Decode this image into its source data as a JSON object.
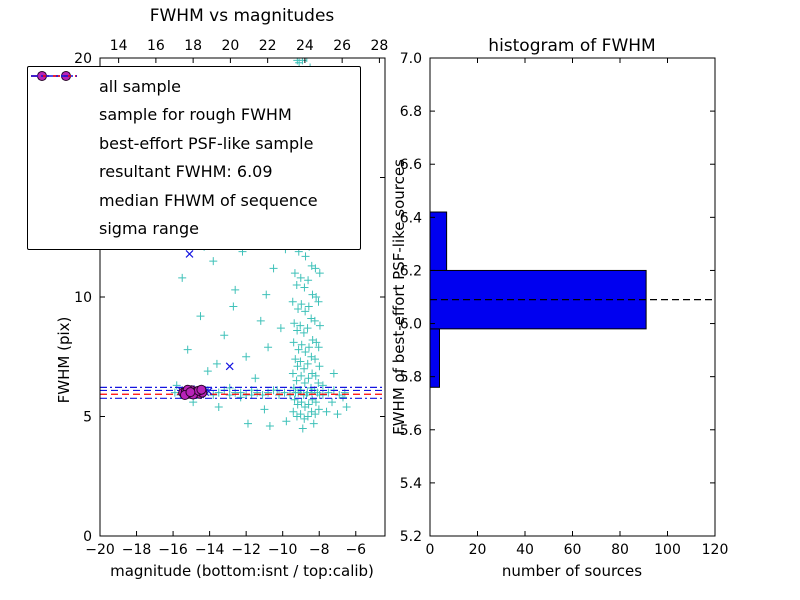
{
  "colors": {
    "all_sample": "#3fc1b9",
    "rough": "#1515e0",
    "psf": "#b823b8",
    "psf_edge": "#2a062a",
    "resultant": "#1515e0",
    "median": "#ff0000",
    "sigma": "#1515e0",
    "bar_fill": "#0000f0",
    "bar_edge": "#000000",
    "hist_line": "#000000",
    "frame": "#000000"
  },
  "chart_data": [
    {
      "id": "fwhm-vs-magnitudes",
      "type": "scatter",
      "title": "FWHM vs magnitudes",
      "xlabel": "magnitude (bottom:isnt / top:calib)",
      "ylabel": "FWHM (pix)",
      "xlim": [
        -20,
        -4.4
      ],
      "top_xlim": [
        13.0,
        28.3
      ],
      "ylim": [
        0,
        20
      ],
      "grid": false,
      "legend_position": "upper-left",
      "xticks": [
        {
          "v": -20,
          "label": "−20"
        },
        {
          "v": -18,
          "label": "−18"
        },
        {
          "v": -16,
          "label": "−16"
        },
        {
          "v": -14,
          "label": "−14"
        },
        {
          "v": -12,
          "label": "−12"
        },
        {
          "v": -10,
          "label": "−10"
        },
        {
          "v": -8,
          "label": "−8"
        },
        {
          "v": -6,
          "label": "−6"
        }
      ],
      "top_xticks": [
        {
          "v": 14,
          "label": "14"
        },
        {
          "v": 16,
          "label": "16"
        },
        {
          "v": 18,
          "label": "18"
        },
        {
          "v": 20,
          "label": "20"
        },
        {
          "v": 22,
          "label": "22"
        },
        {
          "v": 24,
          "label": "24"
        },
        {
          "v": 26,
          "label": "26"
        },
        {
          "v": 28,
          "label": "28"
        }
      ],
      "yticks": [
        {
          "v": 0,
          "label": "0"
        },
        {
          "v": 5,
          "label": "5"
        },
        {
          "v": 10,
          "label": "10"
        },
        {
          "v": 15,
          "label": "15"
        },
        {
          "v": 20,
          "label": "20"
        }
      ],
      "series": [
        {
          "name": "all sample",
          "marker": "plus",
          "color_key": "all_sample",
          "points": [
            [
              -9.42,
              5.2
            ],
            [
              -9.35,
              5.7
            ],
            [
              -9.39,
              6.2
            ],
            [
              -9.44,
              6.8
            ],
            [
              -9.31,
              7.4
            ],
            [
              -9.4,
              8.1
            ],
            [
              -9.37,
              8.9
            ],
            [
              -9.45,
              9.8
            ],
            [
              -9.33,
              11.0
            ],
            [
              -9.41,
              12.6
            ],
            [
              -9.22,
              5.0
            ],
            [
              -9.18,
              5.5
            ],
            [
              -9.15,
              6.0
            ],
            [
              -9.24,
              6.5
            ],
            [
              -9.19,
              7.1
            ],
            [
              -9.13,
              7.8
            ],
            [
              -9.21,
              8.6
            ],
            [
              -9.16,
              9.5
            ],
            [
              -9.23,
              10.5
            ],
            [
              -9.12,
              11.9
            ],
            [
              -9.2,
              13.6
            ],
            [
              -9.02,
              5.1
            ],
            [
              -8.97,
              5.6
            ],
            [
              -9.05,
              6.1
            ],
            [
              -8.99,
              6.7
            ],
            [
              -9.03,
              7.3
            ],
            [
              -8.96,
              8.0
            ],
            [
              -9.04,
              8.8
            ],
            [
              -8.98,
              9.7
            ],
            [
              -9.01,
              10.8
            ],
            [
              -8.95,
              12.2
            ],
            [
              -9.06,
              14.3
            ],
            [
              -9.0,
              16.6
            ],
            [
              -8.82,
              4.9
            ],
            [
              -8.78,
              5.4
            ],
            [
              -8.85,
              5.9
            ],
            [
              -8.79,
              6.4
            ],
            [
              -8.83,
              7.0
            ],
            [
              -8.76,
              7.7
            ],
            [
              -8.84,
              8.5
            ],
            [
              -8.77,
              9.4
            ],
            [
              -8.81,
              10.4
            ],
            [
              -8.75,
              11.7
            ],
            [
              -8.86,
              13.3
            ],
            [
              -8.8,
              15.5
            ],
            [
              -8.74,
              18.1
            ],
            [
              -8.62,
              5.0
            ],
            [
              -8.58,
              5.5
            ],
            [
              -8.65,
              6.0
            ],
            [
              -8.59,
              6.6
            ],
            [
              -8.63,
              7.2
            ],
            [
              -8.56,
              7.9
            ],
            [
              -8.64,
              8.7
            ],
            [
              -8.57,
              9.6
            ],
            [
              -8.61,
              10.7
            ],
            [
              -8.55,
              12.1
            ],
            [
              -8.66,
              13.9
            ],
            [
              -8.6,
              16.3
            ],
            [
              -8.54,
              19.2
            ],
            [
              -8.42,
              5.2
            ],
            [
              -8.38,
              5.7
            ],
            [
              -8.45,
              6.2
            ],
            [
              -8.39,
              6.8
            ],
            [
              -8.43,
              7.5
            ],
            [
              -8.36,
              8.2
            ],
            [
              -8.44,
              9.1
            ],
            [
              -8.37,
              10.1
            ],
            [
              -8.41,
              11.3
            ],
            [
              -8.35,
              12.9
            ],
            [
              -8.46,
              15.1
            ],
            [
              -8.4,
              17.7
            ],
            [
              -8.22,
              5.1
            ],
            [
              -8.18,
              5.6
            ],
            [
              -8.25,
              6.1
            ],
            [
              -8.19,
              6.7
            ],
            [
              -8.23,
              7.4
            ],
            [
              -8.16,
              8.1
            ],
            [
              -8.24,
              9.0
            ],
            [
              -8.17,
              10.0
            ],
            [
              -8.21,
              11.2
            ],
            [
              -8.15,
              12.7
            ],
            [
              -8.26,
              14.6
            ],
            [
              -8.02,
              5.3
            ],
            [
              -7.98,
              5.9
            ],
            [
              -8.05,
              6.4
            ],
            [
              -7.99,
              7.1
            ],
            [
              -8.03,
              7.9
            ],
            [
              -7.96,
              8.8
            ],
            [
              -8.04,
              9.8
            ],
            [
              -7.97,
              11.0
            ],
            [
              -9.1,
              19.8
            ],
            [
              -8.92,
              19.9
            ],
            [
              -8.68,
              20.0
            ],
            [
              -9.3,
              18.5
            ],
            [
              -8.5,
              19.6
            ],
            [
              -9.2,
              19.9
            ],
            [
              -8.85,
              18.6
            ],
            [
              -15.8,
              6.3
            ],
            [
              -15.2,
              7.8
            ],
            [
              -14.9,
              5.6
            ],
            [
              -14.5,
              9.2
            ],
            [
              -14.1,
              6.9
            ],
            [
              -13.8,
              11.5
            ],
            [
              -13.5,
              5.4
            ],
            [
              -13.2,
              8.4
            ],
            [
              -12.9,
              6.2
            ],
            [
              -12.6,
              10.3
            ],
            [
              -12.3,
              5.8
            ],
            [
              -12.0,
              7.5
            ],
            [
              -11.8,
              12.8
            ],
            [
              -11.5,
              6.6
            ],
            [
              -11.2,
              9.0
            ],
            [
              -11.0,
              5.3
            ],
            [
              -10.8,
              7.9
            ],
            [
              -10.5,
              11.2
            ],
            [
              -10.3,
              6.1
            ],
            [
              -10.1,
              8.7
            ],
            [
              -13.0,
              13.5
            ],
            [
              -12.2,
              11.9
            ],
            [
              -11.3,
              13.1
            ],
            [
              -10.6,
              12.4
            ],
            [
              -14.3,
              12.1
            ],
            [
              -15.5,
              10.8
            ],
            [
              -13.6,
              7.2
            ],
            [
              -12.7,
              9.6
            ],
            [
              -11.7,
              5.9
            ],
            [
              -10.9,
              10.1
            ],
            [
              -9.7,
              14.8
            ],
            [
              -9.55,
              13.2
            ],
            [
              -9.85,
              12.0
            ],
            [
              -10.0,
              15.5
            ],
            [
              -7.6,
              5.2
            ],
            [
              -7.3,
              5.6
            ],
            [
              -7.0,
              5.1
            ],
            [
              -6.7,
              5.8
            ],
            [
              -6.5,
              5.4
            ],
            [
              -7.8,
              6.3
            ],
            [
              -7.2,
              6.8
            ],
            [
              -11.9,
              4.7
            ],
            [
              -10.7,
              4.6
            ],
            [
              -9.8,
              4.8
            ],
            [
              -8.9,
              4.5
            ],
            [
              -8.3,
              4.7
            ],
            [
              -15.9,
              6.0
            ],
            [
              -15.6,
              5.9
            ],
            [
              -15.3,
              6.1
            ],
            [
              -15.0,
              6.0
            ],
            [
              -14.7,
              5.9
            ],
            [
              -14.4,
              6.0
            ],
            [
              -14.1,
              6.1
            ],
            [
              -13.8,
              5.9
            ],
            [
              -13.5,
              6.0
            ],
            [
              -13.2,
              6.1
            ],
            [
              -12.9,
              5.9
            ],
            [
              -12.6,
              6.0
            ],
            [
              -12.3,
              6.0
            ],
            [
              -12.0,
              5.9
            ],
            [
              -11.7,
              6.1
            ],
            [
              -11.4,
              6.0
            ],
            [
              -11.1,
              5.9
            ],
            [
              -10.8,
              6.0
            ],
            [
              -10.5,
              6.1
            ],
            [
              -10.2,
              5.9
            ],
            [
              -9.9,
              6.0
            ],
            [
              -9.6,
              5.9
            ],
            [
              -9.3,
              6.0
            ],
            [
              -9.0,
              6.1
            ],
            [
              -8.7,
              5.9
            ],
            [
              -8.4,
              6.0
            ],
            [
              -8.1,
              6.0
            ],
            [
              -7.8,
              5.9
            ],
            [
              -7.5,
              6.0
            ],
            [
              -7.2,
              6.1
            ],
            [
              -6.9,
              5.9
            ],
            [
              -6.6,
              6.0
            ]
          ]
        },
        {
          "name": "sample for rough FWHM",
          "marker": "x",
          "color_key": "rough",
          "points": [
            [
              -15.5,
              6.05
            ],
            [
              -15.32,
              6.1
            ],
            [
              -15.14,
              5.95
            ],
            [
              -14.96,
              6.0
            ],
            [
              -14.78,
              6.08
            ],
            [
              -14.6,
              5.98
            ],
            [
              -14.42,
              6.12
            ],
            [
              -14.24,
              6.02
            ],
            [
              -14.06,
              6.06
            ],
            [
              -15.02,
              6.15
            ],
            [
              -14.5,
              5.92
            ],
            [
              -15.1,
              11.8
            ],
            [
              -12.9,
              7.1
            ]
          ]
        },
        {
          "name": "best-effort PSF-like sample",
          "marker": "circle",
          "color_key": "psf",
          "points": [
            [
              -15.45,
              6.0
            ],
            [
              -15.3,
              6.05
            ],
            [
              -15.15,
              5.95
            ],
            [
              -15.0,
              6.1
            ],
            [
              -14.85,
              6.0
            ],
            [
              -14.7,
              6.05
            ],
            [
              -14.55,
              5.95
            ],
            [
              -14.4,
              6.0
            ],
            [
              -15.2,
              6.12
            ],
            [
              -14.9,
              5.92
            ],
            [
              -14.6,
              6.08
            ],
            [
              -15.35,
              5.9
            ],
            [
              -14.45,
              6.12
            ],
            [
              -15.05,
              6.02
            ]
          ]
        }
      ],
      "hlines": [
        {
          "y": 6.22,
          "style": "dashdot",
          "color_key": "sigma",
          "name": "sigma range upper"
        },
        {
          "y": 6.09,
          "style": "dashed",
          "color_key": "resultant",
          "name": "resultant FWHM"
        },
        {
          "y": 5.93,
          "style": "dashed",
          "color_key": "median",
          "name": "median FHWM of sequence"
        },
        {
          "y": 5.76,
          "style": "dashdot",
          "color_key": "sigma",
          "name": "sigma range lower"
        }
      ],
      "legend": [
        {
          "label": "all sample",
          "marker": "plus",
          "color_key": "all_sample"
        },
        {
          "label": "sample for rough FWHM",
          "marker": "x",
          "color_key": "rough"
        },
        {
          "label": "best-effort PSF-like sample",
          "marker": "circle",
          "color_key": "psf"
        },
        {
          "label": "resultant FWHM: 6.09",
          "marker": "dashed",
          "color_key": "resultant"
        },
        {
          "label": "median FHWM of sequence",
          "marker": "dashed",
          "color_key": "median"
        },
        {
          "label": "sigma range",
          "marker": "dashdot",
          "color_key": "sigma"
        }
      ]
    },
    {
      "id": "histogram-of-fwhm",
      "type": "bar",
      "orientation": "horizontal",
      "title": "histogram of FWHM",
      "xlabel": "number of sources",
      "ylabel": "FWHM of best-effort PSF-like sources",
      "xlim": [
        0,
        120
      ],
      "ylim": [
        5.2,
        7.0
      ],
      "grid": false,
      "xticks": [
        {
          "v": 0,
          "label": "0"
        },
        {
          "v": 20,
          "label": "20"
        },
        {
          "v": 40,
          "label": "40"
        },
        {
          "v": 60,
          "label": "60"
        },
        {
          "v": 80,
          "label": "80"
        },
        {
          "v": 100,
          "label": "100"
        },
        {
          "v": 120,
          "label": "120"
        }
      ],
      "yticks": [
        {
          "v": 5.2,
          "label": "5.2"
        },
        {
          "v": 5.4,
          "label": "5.4"
        },
        {
          "v": 5.6,
          "label": "5.6"
        },
        {
          "v": 5.8,
          "label": "5.8"
        },
        {
          "v": 6.0,
          "label": "6.0"
        },
        {
          "v": 6.2,
          "label": "6.2"
        },
        {
          "v": 6.4,
          "label": "6.4"
        },
        {
          "v": 6.6,
          "label": "6.6"
        },
        {
          "v": 6.8,
          "label": "6.8"
        },
        {
          "v": 7.0,
          "label": "7.0"
        }
      ],
      "bins": [
        {
          "lo": 5.76,
          "hi": 5.98,
          "count": 4
        },
        {
          "lo": 5.98,
          "hi": 6.2,
          "count": 91
        },
        {
          "lo": 6.2,
          "hi": 6.42,
          "count": 7
        }
      ],
      "median_line": {
        "y": 6.09,
        "style": "dashed"
      }
    }
  ]
}
